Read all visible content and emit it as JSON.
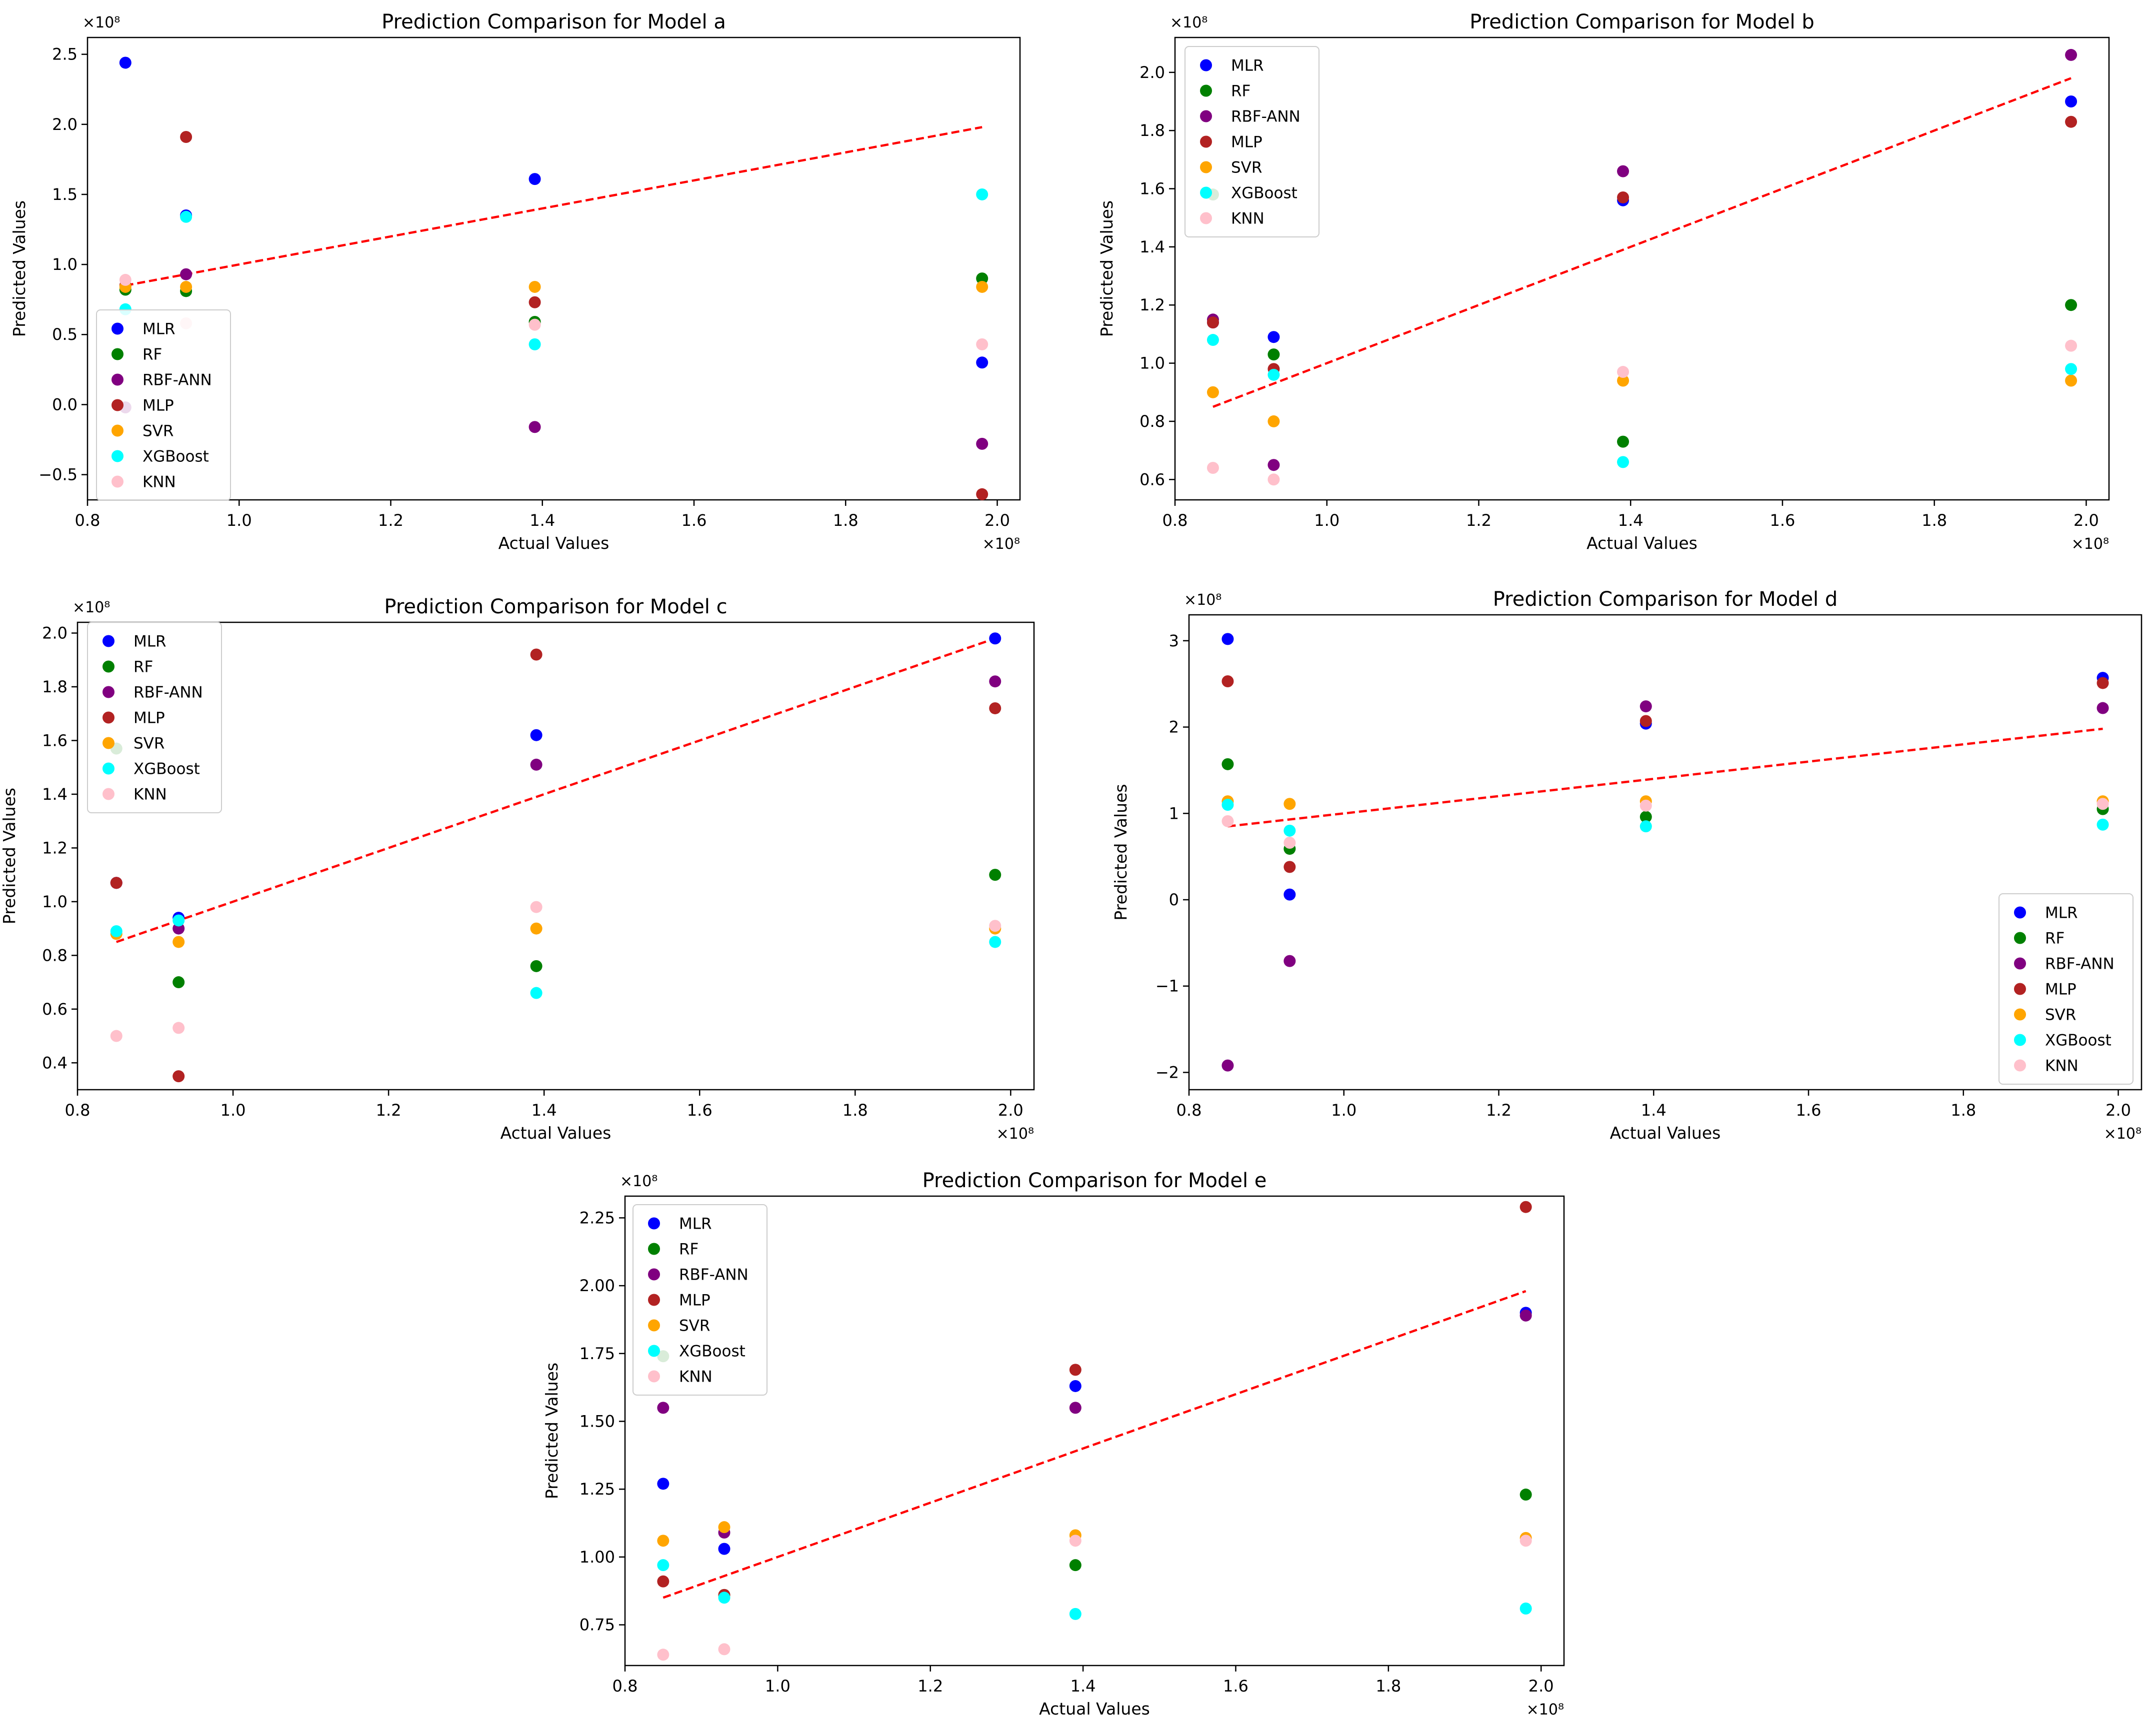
{
  "figure": {
    "colors": {
      "MLR": "#0000ff",
      "RF": "#008000",
      "RBF-ANN": "#800080",
      "MLP": "#b22222",
      "SVR": "#ffa500",
      "XGBoost": "#00ffff",
      "KNN": "#ffc0cb",
      "trend": "#ff0000"
    }
  },
  "chart_data": [
    {
      "type": "scatter",
      "title": "Prediction Comparison for Model a",
      "xlabel": "Actual Values",
      "ylabel": "Predicted Values",
      "x_multiplier_label": "×10⁸",
      "y_multiplier_label": "×10⁸",
      "xlim": [
        0.8,
        2.03
      ],
      "ylim": [
        -0.68,
        2.62
      ],
      "xticks": [
        0.8,
        1.0,
        1.2,
        1.4,
        1.6,
        1.8,
        2.0
      ],
      "xtick_labels": [
        "0.8",
        "1.0",
        "1.2",
        "1.4",
        "1.6",
        "1.8",
        "2.0"
      ],
      "yticks": [
        -0.5,
        0.0,
        0.5,
        1.0,
        1.5,
        2.0,
        2.5
      ],
      "ytick_labels": [
        "−0.5",
        "0.0",
        "0.5",
        "1.0",
        "1.5",
        "2.0",
        "2.5"
      ],
      "legend_position": "lower-left",
      "x": [
        0.85,
        0.93,
        1.39,
        1.98
      ],
      "series": [
        {
          "name": "MLR",
          "values": [
            2.44,
            1.35,
            1.61,
            0.3
          ]
        },
        {
          "name": "RF",
          "values": [
            0.82,
            0.81,
            0.59,
            0.9
          ]
        },
        {
          "name": "RBF-ANN",
          "values": [
            -0.02,
            0.93,
            -0.16,
            -0.28
          ]
        },
        {
          "name": "MLP",
          "values": [
            0.85,
            1.91,
            0.73,
            -0.64
          ]
        },
        {
          "name": "SVR",
          "values": [
            0.84,
            0.84,
            0.84,
            0.84
          ]
        },
        {
          "name": "XGBoost",
          "values": [
            0.68,
            1.34,
            0.43,
            1.5
          ]
        },
        {
          "name": "KNN",
          "values": [
            0.89,
            0.58,
            0.57,
            0.43
          ]
        }
      ],
      "trend_line": {
        "x": [
          0.85,
          1.98
        ],
        "y": [
          0.85,
          1.98
        ]
      }
    },
    {
      "type": "scatter",
      "title": "Prediction Comparison for Model b",
      "xlabel": "Actual Values",
      "ylabel": "Predicted Values",
      "x_multiplier_label": "×10⁸",
      "y_multiplier_label": "×10⁸",
      "xlim": [
        0.8,
        2.03
      ],
      "ylim": [
        0.53,
        2.12
      ],
      "xticks": [
        0.8,
        1.0,
        1.2,
        1.4,
        1.6,
        1.8,
        2.0
      ],
      "xtick_labels": [
        "0.8",
        "1.0",
        "1.2",
        "1.4",
        "1.6",
        "1.8",
        "2.0"
      ],
      "yticks": [
        0.6,
        0.8,
        1.0,
        1.2,
        1.4,
        1.6,
        1.8,
        2.0
      ],
      "ytick_labels": [
        "0.6",
        "0.8",
        "1.0",
        "1.2",
        "1.4",
        "1.6",
        "1.8",
        "2.0"
      ],
      "legend_position": "upper-left",
      "x": [
        0.85,
        0.93,
        1.39,
        1.98
      ],
      "series": [
        {
          "name": "MLR",
          "values": [
            1.14,
            1.09,
            1.56,
            1.9
          ]
        },
        {
          "name": "RF",
          "values": [
            1.58,
            1.03,
            0.73,
            1.2
          ]
        },
        {
          "name": "RBF-ANN",
          "values": [
            1.15,
            0.65,
            1.66,
            2.06
          ]
        },
        {
          "name": "MLP",
          "values": [
            1.14,
            0.98,
            1.57,
            1.83
          ]
        },
        {
          "name": "SVR",
          "values": [
            0.9,
            0.8,
            0.94,
            0.94
          ]
        },
        {
          "name": "XGBoost",
          "values": [
            1.08,
            0.96,
            0.66,
            0.98
          ]
        },
        {
          "name": "KNN",
          "values": [
            0.64,
            0.6,
            0.97,
            1.06
          ]
        }
      ],
      "trend_line": {
        "x": [
          0.85,
          1.98
        ],
        "y": [
          0.85,
          1.98
        ]
      }
    },
    {
      "type": "scatter",
      "title": "Prediction Comparison for Model c",
      "xlabel": "Actual Values",
      "ylabel": "Predicted Values",
      "x_multiplier_label": "×10⁸",
      "y_multiplier_label": "×10⁸",
      "xlim": [
        0.8,
        2.03
      ],
      "ylim": [
        0.3,
        2.04
      ],
      "xticks": [
        0.8,
        1.0,
        1.2,
        1.4,
        1.6,
        1.8,
        2.0
      ],
      "xtick_labels": [
        "0.8",
        "1.0",
        "1.2",
        "1.4",
        "1.6",
        "1.8",
        "2.0"
      ],
      "yticks": [
        0.4,
        0.6,
        0.8,
        1.0,
        1.2,
        1.4,
        1.6,
        1.8,
        2.0
      ],
      "ytick_labels": [
        "0.4",
        "0.6",
        "0.8",
        "1.0",
        "1.2",
        "1.4",
        "1.6",
        "1.8",
        "2.0"
      ],
      "legend_position": "upper-left",
      "x": [
        0.85,
        0.93,
        1.39,
        1.98
      ],
      "series": [
        {
          "name": "MLR",
          "values": [
            1.07,
            0.94,
            1.62,
            1.98
          ]
        },
        {
          "name": "RF",
          "values": [
            1.57,
            0.7,
            0.76,
            1.1
          ]
        },
        {
          "name": "RBF-ANN",
          "values": [
            1.07,
            0.9,
            1.51,
            1.82
          ]
        },
        {
          "name": "MLP",
          "values": [
            1.07,
            0.35,
            1.92,
            1.72
          ]
        },
        {
          "name": "SVR",
          "values": [
            0.88,
            0.85,
            0.9,
            0.9
          ]
        },
        {
          "name": "XGBoost",
          "values": [
            0.89,
            0.93,
            0.66,
            0.85
          ]
        },
        {
          "name": "KNN",
          "values": [
            0.5,
            0.53,
            0.98,
            0.91
          ]
        }
      ],
      "trend_line": {
        "x": [
          0.85,
          1.98
        ],
        "y": [
          0.85,
          1.98
        ]
      }
    },
    {
      "type": "scatter",
      "title": "Prediction Comparison for Model d",
      "xlabel": "Actual Values",
      "ylabel": "Predicted Values",
      "x_multiplier_label": "×10⁸",
      "y_multiplier_label": "×10⁸",
      "xlim": [
        0.8,
        2.03
      ],
      "ylim": [
        -2.2,
        3.3
      ],
      "xticks": [
        0.8,
        1.0,
        1.2,
        1.4,
        1.6,
        1.8,
        2.0
      ],
      "xtick_labels": [
        "0.8",
        "1.0",
        "1.2",
        "1.4",
        "1.6",
        "1.8",
        "2.0"
      ],
      "yticks": [
        -2,
        -1,
        0,
        1,
        2,
        3
      ],
      "ytick_labels": [
        "−2",
        "−1",
        "0",
        "1",
        "2",
        "3"
      ],
      "legend_position": "lower-right",
      "x": [
        0.85,
        0.93,
        1.39,
        1.98
      ],
      "series": [
        {
          "name": "MLR",
          "values": [
            3.02,
            0.06,
            2.04,
            2.57
          ]
        },
        {
          "name": "RF",
          "values": [
            1.57,
            0.59,
            0.96,
            1.05
          ]
        },
        {
          "name": "RBF-ANN",
          "values": [
            -1.92,
            -0.71,
            2.24,
            2.22
          ]
        },
        {
          "name": "MLP",
          "values": [
            2.53,
            0.38,
            2.07,
            2.51
          ]
        },
        {
          "name": "SVR",
          "values": [
            1.14,
            1.11,
            1.14,
            1.14
          ]
        },
        {
          "name": "XGBoost",
          "values": [
            1.1,
            0.8,
            0.85,
            0.87
          ]
        },
        {
          "name": "KNN",
          "values": [
            0.91,
            0.66,
            1.09,
            1.11
          ]
        }
      ],
      "trend_line": {
        "x": [
          0.85,
          1.98
        ],
        "y": [
          0.85,
          1.98
        ]
      }
    },
    {
      "type": "scatter",
      "title": "Prediction Comparison for Model e",
      "xlabel": "Actual Values",
      "ylabel": "Predicted Values",
      "x_multiplier_label": "×10⁸",
      "y_multiplier_label": "×10⁸",
      "xlim": [
        0.8,
        2.03
      ],
      "ylim": [
        0.6,
        2.33
      ],
      "xticks": [
        0.8,
        1.0,
        1.2,
        1.4,
        1.6,
        1.8,
        2.0
      ],
      "xtick_labels": [
        "0.8",
        "1.0",
        "1.2",
        "1.4",
        "1.6",
        "1.8",
        "2.0"
      ],
      "yticks": [
        0.75,
        1.0,
        1.25,
        1.5,
        1.75,
        2.0,
        2.25
      ],
      "ytick_labels": [
        "0.75",
        "1.00",
        "1.25",
        "1.50",
        "1.75",
        "2.00",
        "2.25"
      ],
      "legend_position": "upper-left",
      "x": [
        0.85,
        0.93,
        1.39,
        1.98
      ],
      "series": [
        {
          "name": "MLR",
          "values": [
            1.27,
            1.03,
            1.63,
            1.9
          ]
        },
        {
          "name": "RF",
          "values": [
            1.74,
            0.86,
            0.97,
            1.23
          ]
        },
        {
          "name": "RBF-ANN",
          "values": [
            1.55,
            1.09,
            1.55,
            1.89
          ]
        },
        {
          "name": "MLP",
          "values": [
            0.91,
            0.86,
            1.69,
            2.29
          ]
        },
        {
          "name": "SVR",
          "values": [
            1.06,
            1.11,
            1.08,
            1.07
          ]
        },
        {
          "name": "XGBoost",
          "values": [
            0.97,
            0.85,
            0.79,
            0.81
          ]
        },
        {
          "name": "KNN",
          "values": [
            0.64,
            0.66,
            1.06,
            1.06
          ]
        }
      ],
      "trend_line": {
        "x": [
          0.85,
          1.98
        ],
        "y": [
          0.85,
          1.98
        ]
      }
    }
  ]
}
